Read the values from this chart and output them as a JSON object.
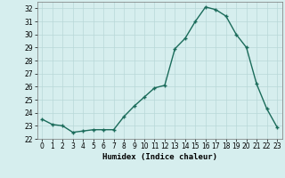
{
  "xlabel": "Humidex (Indice chaleur)",
  "ylabel": "",
  "x": [
    0,
    1,
    2,
    3,
    4,
    5,
    6,
    7,
    8,
    9,
    10,
    11,
    12,
    13,
    14,
    15,
    16,
    17,
    18,
    19,
    20,
    21,
    22,
    23
  ],
  "y": [
    23.5,
    23.1,
    23.0,
    22.5,
    22.6,
    22.7,
    22.7,
    22.7,
    23.7,
    24.5,
    25.2,
    25.9,
    26.1,
    28.9,
    29.7,
    31.0,
    32.1,
    31.9,
    31.4,
    30.0,
    29.0,
    26.2,
    24.3,
    22.9
  ],
  "line_color": "#1a6b5a",
  "marker": "+",
  "marker_size": 3,
  "linewidth": 1.0,
  "background_color": "#d6eeee",
  "grid_color": "#b8d8d8",
  "ylim": [
    22,
    32.5
  ],
  "yticks": [
    22,
    23,
    24,
    25,
    26,
    27,
    28,
    29,
    30,
    31,
    32
  ],
  "xticks": [
    0,
    1,
    2,
    3,
    4,
    5,
    6,
    7,
    8,
    9,
    10,
    11,
    12,
    13,
    14,
    15,
    16,
    17,
    18,
    19,
    20,
    21,
    22,
    23
  ],
  "tick_fontsize": 5.5,
  "xlabel_fontsize": 6.5,
  "markeredgewidth": 1.0
}
